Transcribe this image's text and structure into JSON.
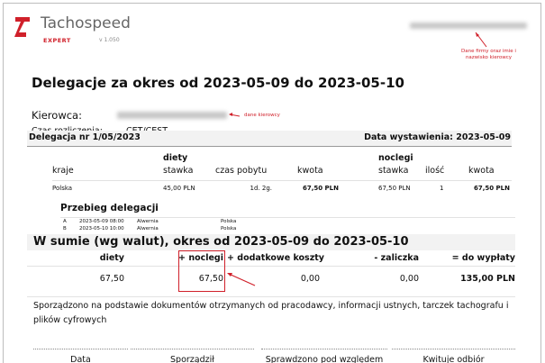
{
  "header": {
    "brand": "Tachospeed",
    "edition": "EXPERT",
    "version": "v 1.050",
    "brand_color": "#d0202a",
    "annotation_company": "Dane firmy oraz imie i nazwisko kierowcy"
  },
  "title": "Delegacje za okres od 2023-05-09 do 2023-05-10",
  "driver": {
    "label": "Kierowca:",
    "annotation": "dane kierowcy",
    "time_label": "Czas rozliczenia:",
    "time_value": "CET/CEST"
  },
  "delegation": {
    "number": "Delegacja nr 1/05/2023",
    "issue_date": "Data wystawienia: 2023-05-09",
    "group_diety": "diety",
    "group_noclegi": "noclegi",
    "columns": [
      "kraje",
      "stawka",
      "czas pobytu",
      "kwota",
      "stawka",
      "ilość",
      "kwota"
    ],
    "row": [
      "Polska",
      "45,00 PLN",
      "1d. 2g.",
      "67,50 PLN",
      "67,50 PLN",
      "1",
      "67,50 PLN"
    ],
    "route_title": "Przebieg delegacji",
    "route": [
      [
        "A",
        "2023-05-09 08:00",
        "Alwernia",
        "Polska"
      ],
      [
        "B",
        "2023-05-10 10:00",
        "Alwernia",
        "Polska"
      ]
    ]
  },
  "summary": {
    "title": "W sumie (wg walut), okres od 2023-05-09 do 2023-05-10",
    "columns": [
      "diety",
      "+ noclegi",
      "+ dodatkowe koszty",
      "- zaliczka",
      "= do wypłaty"
    ],
    "values": [
      "67,50",
      "67,50",
      "0,00",
      "0,00",
      "135,00 PLN"
    ]
  },
  "note": "Sporządzono na podstawie dokumentów otrzymanych od pracodawcy, informacji ustnych, tarczek tachografu i plików cyfrowych",
  "signatures": [
    "Data",
    "Sporządził",
    "Sprawdzono pod względem formalno-rachunkowym",
    "Kwituje odbiór"
  ]
}
